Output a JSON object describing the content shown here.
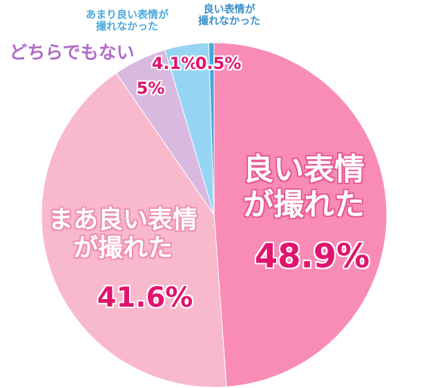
{
  "chart_data": {
    "type": "pie",
    "categories": [
      "良い表情\nが撮れた",
      "まあ良い表情\nが撮れた",
      "どちらでもない",
      "あまり良い表情が\n撮れなかった",
      "良い表情が\n撮れなかった"
    ],
    "values": [
      48.9,
      41.6,
      5,
      4.1,
      0.5
    ],
    "value_labels": [
      "48.9%",
      "41.6%",
      "5%",
      "4.1%",
      "0.5%"
    ],
    "colors": [
      "#f98cb6",
      "#f9b9cd",
      "#d9b9e0",
      "#95d5f3",
      "#4aa6d9"
    ]
  }
}
